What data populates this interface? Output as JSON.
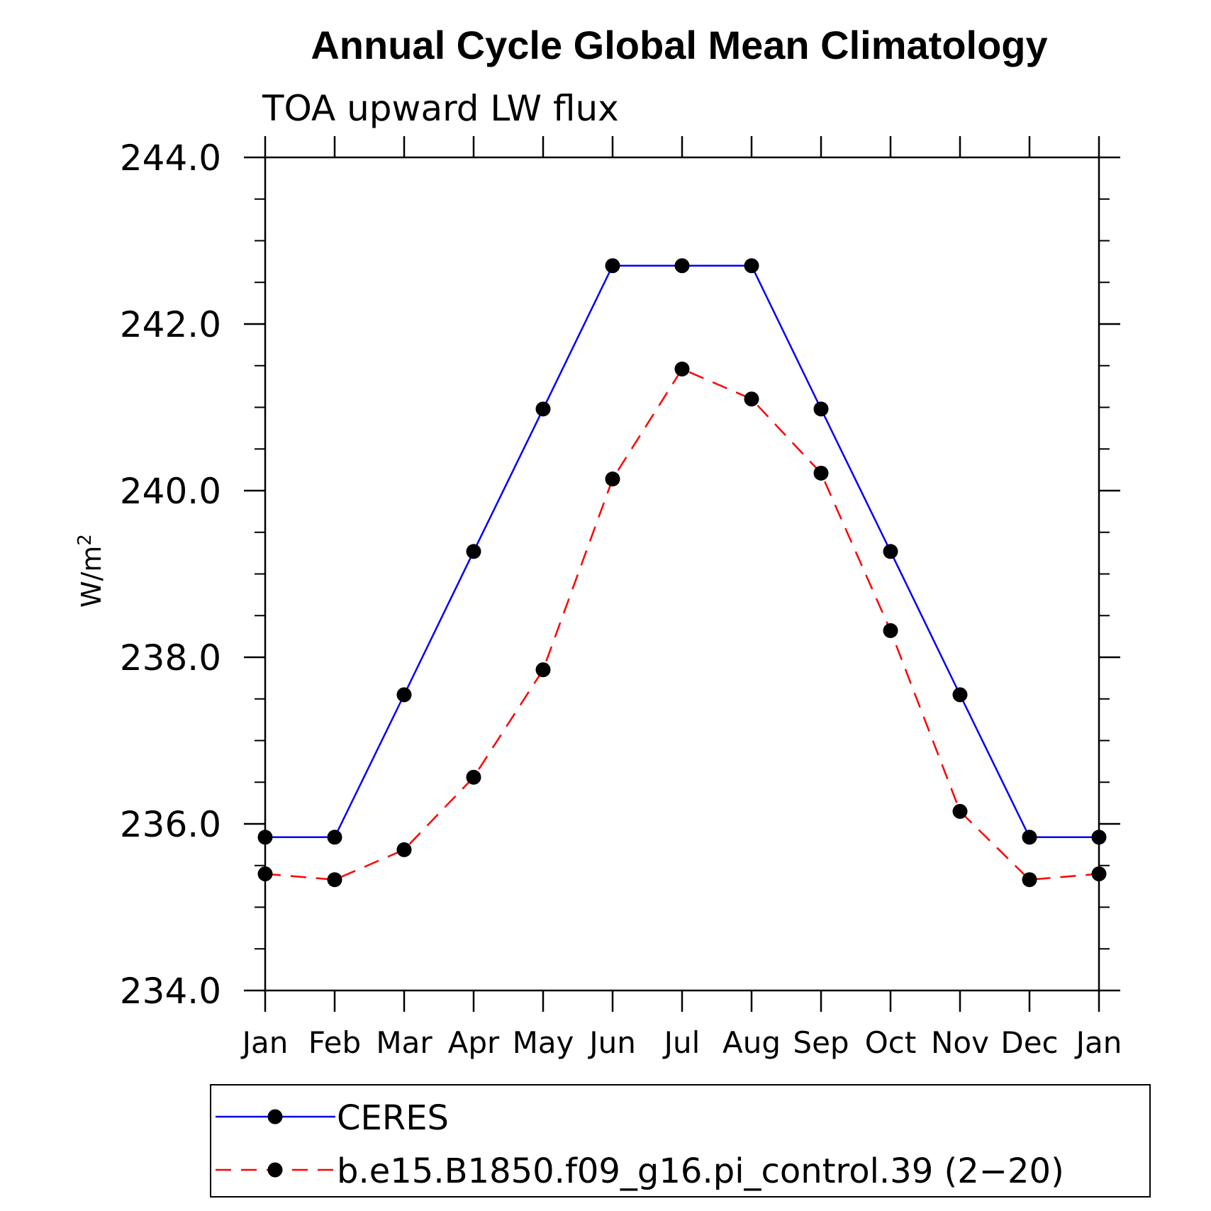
{
  "chart_data": {
    "type": "line",
    "title": "Annual Cycle Global Mean Climatology",
    "subtitle": "TOA upward LW flux",
    "ylabel": "W/m",
    "ylabel_superscript": "2",
    "ylim": [
      234.0,
      244.0
    ],
    "yticks": [
      "234.0",
      "236.0",
      "238.0",
      "240.0",
      "242.0",
      "244.0"
    ],
    "categories": [
      "Jan",
      "Feb",
      "Mar",
      "Apr",
      "May",
      "Jun",
      "Jul",
      "Aug",
      "Sep",
      "Oct",
      "Nov",
      "Dec",
      "Jan"
    ],
    "series": [
      {
        "name": "CERES",
        "color": "#0000ff",
        "dash": "solid",
        "values": [
          235.84,
          235.84,
          237.55,
          239.27,
          240.98,
          242.7,
          242.7,
          242.7,
          240.98,
          239.27,
          237.55,
          235.84,
          235.84
        ]
      },
      {
        "name": "b.e15.B1850.f09_g16.pi_control.39 (2−20)",
        "color": "#ff0000",
        "dash": "dashed",
        "values": [
          235.4,
          235.33,
          235.69,
          236.56,
          237.85,
          240.14,
          241.46,
          241.1,
          240.21,
          238.32,
          236.15,
          235.33,
          235.4
        ]
      }
    ],
    "legend_position": "bottom",
    "grid": false,
    "marker": "filled-circle",
    "marker_color": "#000000"
  }
}
